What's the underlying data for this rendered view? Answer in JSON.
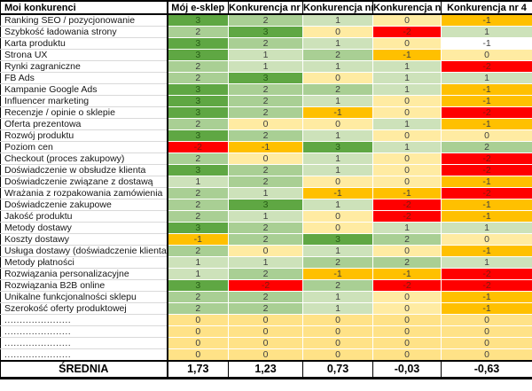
{
  "table": {
    "header": {
      "label_col": "Moi konkurenci",
      "columns": [
        "Mój e-sklep",
        "Konkurencja nr 1",
        "Konkurencja nr 2",
        "Konkurencja nr 3",
        "Konkurencja nr 4"
      ]
    },
    "rows": [
      {
        "label": "Ranking SEO / pozycjonowanie",
        "values": [
          3,
          2,
          1,
          0,
          -1
        ]
      },
      {
        "label": "Szybkość ładowania strony",
        "values": [
          2,
          3,
          0,
          -2,
          1
        ]
      },
      {
        "label": "Karta produktu",
        "values": [
          3,
          2,
          1,
          0,
          -1
        ],
        "overrides": {
          "4": "#FFFFFF"
        }
      },
      {
        "label": "Strona UX",
        "values": [
          3,
          1,
          2,
          -1,
          0
        ]
      },
      {
        "label": "Rynki zagraniczne",
        "values": [
          2,
          1,
          1,
          1,
          -2
        ]
      },
      {
        "label": "FB Ads",
        "values": [
          2,
          3,
          0,
          1,
          1
        ]
      },
      {
        "label": "Kampanie Google Ads",
        "values": [
          3,
          2,
          2,
          1,
          -1
        ]
      },
      {
        "label": "Influencer marketing",
        "values": [
          3,
          2,
          1,
          0,
          -1
        ]
      },
      {
        "label": "Recenzje / opinie o sklepie",
        "values": [
          3,
          2,
          -1,
          0,
          -2
        ]
      },
      {
        "label": "Oferta prezentowa",
        "values": [
          2,
          0,
          0,
          1,
          -1
        ]
      },
      {
        "label": "Rozwój produktu",
        "values": [
          3,
          2,
          1,
          0,
          0
        ]
      },
      {
        "label": "Poziom cen",
        "values": [
          -2,
          -1,
          3,
          1,
          2
        ]
      },
      {
        "label": "Checkout (proces zakupowy)",
        "values": [
          2,
          0,
          1,
          0,
          -2
        ]
      },
      {
        "label": "Doświadczenie w obsłudze klienta",
        "values": [
          3,
          2,
          1,
          0,
          -2
        ]
      },
      {
        "label": "Doświadczenie związane z dostawą",
        "values": [
          1,
          2,
          0,
          0,
          -1
        ]
      },
      {
        "label": "Wrażania z rozpakowania zamówienia",
        "values": [
          2,
          1,
          -1,
          -1,
          -2
        ]
      },
      {
        "label": "Doświadczenie zakupowe",
        "values": [
          2,
          3,
          1,
          -2,
          -1
        ]
      },
      {
        "label": "Jakość produktu",
        "values": [
          2,
          1,
          0,
          -2,
          -1
        ]
      },
      {
        "label": "Metody dostawy",
        "values": [
          3,
          2,
          0,
          1,
          1
        ]
      },
      {
        "label": "Koszty dostawy",
        "values": [
          -1,
          2,
          3,
          2,
          0
        ]
      },
      {
        "label": "Usługa dostawy (doświadczenie klienta)",
        "values": [
          2,
          0,
          1,
          0,
          -1
        ]
      },
      {
        "label": "Metody płatności",
        "values": [
          1,
          1,
          2,
          2,
          1
        ]
      },
      {
        "label": "Rozwiązania personalizacyjne",
        "values": [
          1,
          2,
          -1,
          -1,
          -2
        ]
      },
      {
        "label": "Rozwiązania B2B online",
        "values": [
          3,
          -2,
          2,
          -2,
          -2
        ]
      },
      {
        "label": "Unikalne funkcjonalności sklepu",
        "values": [
          2,
          2,
          1,
          0,
          -1
        ]
      },
      {
        "label": "Szerokość oferty produktowej",
        "values": [
          2,
          2,
          1,
          0,
          -1
        ]
      },
      {
        "label": "......................",
        "values": [
          0,
          0,
          0,
          0,
          0
        ],
        "placeholder": true
      },
      {
        "label": "......................",
        "values": [
          0,
          0,
          0,
          0,
          0
        ],
        "placeholder": true
      },
      {
        "label": "......................",
        "values": [
          0,
          0,
          0,
          0,
          0
        ],
        "placeholder": true
      },
      {
        "label": "......................",
        "values": [
          0,
          0,
          0,
          0,
          0
        ],
        "placeholder": true
      }
    ],
    "footer": {
      "label": "ŚREDNIA",
      "values": [
        "1,73",
        "1,23",
        "0,73",
        "-0,03",
        "-0,63"
      ]
    }
  },
  "colors": {
    "3": "#5FA743",
    "2": "#A9CF94",
    "1": "#CDE2BA",
    "0": "#FFEBA2",
    "-1": "#FFC000",
    "-2": "#FF0000",
    "placeholder": "#FFE287"
  },
  "text_colors": {
    "3": "#275D16",
    "-2": "#7C190E",
    "default": "#3F3F3F"
  }
}
